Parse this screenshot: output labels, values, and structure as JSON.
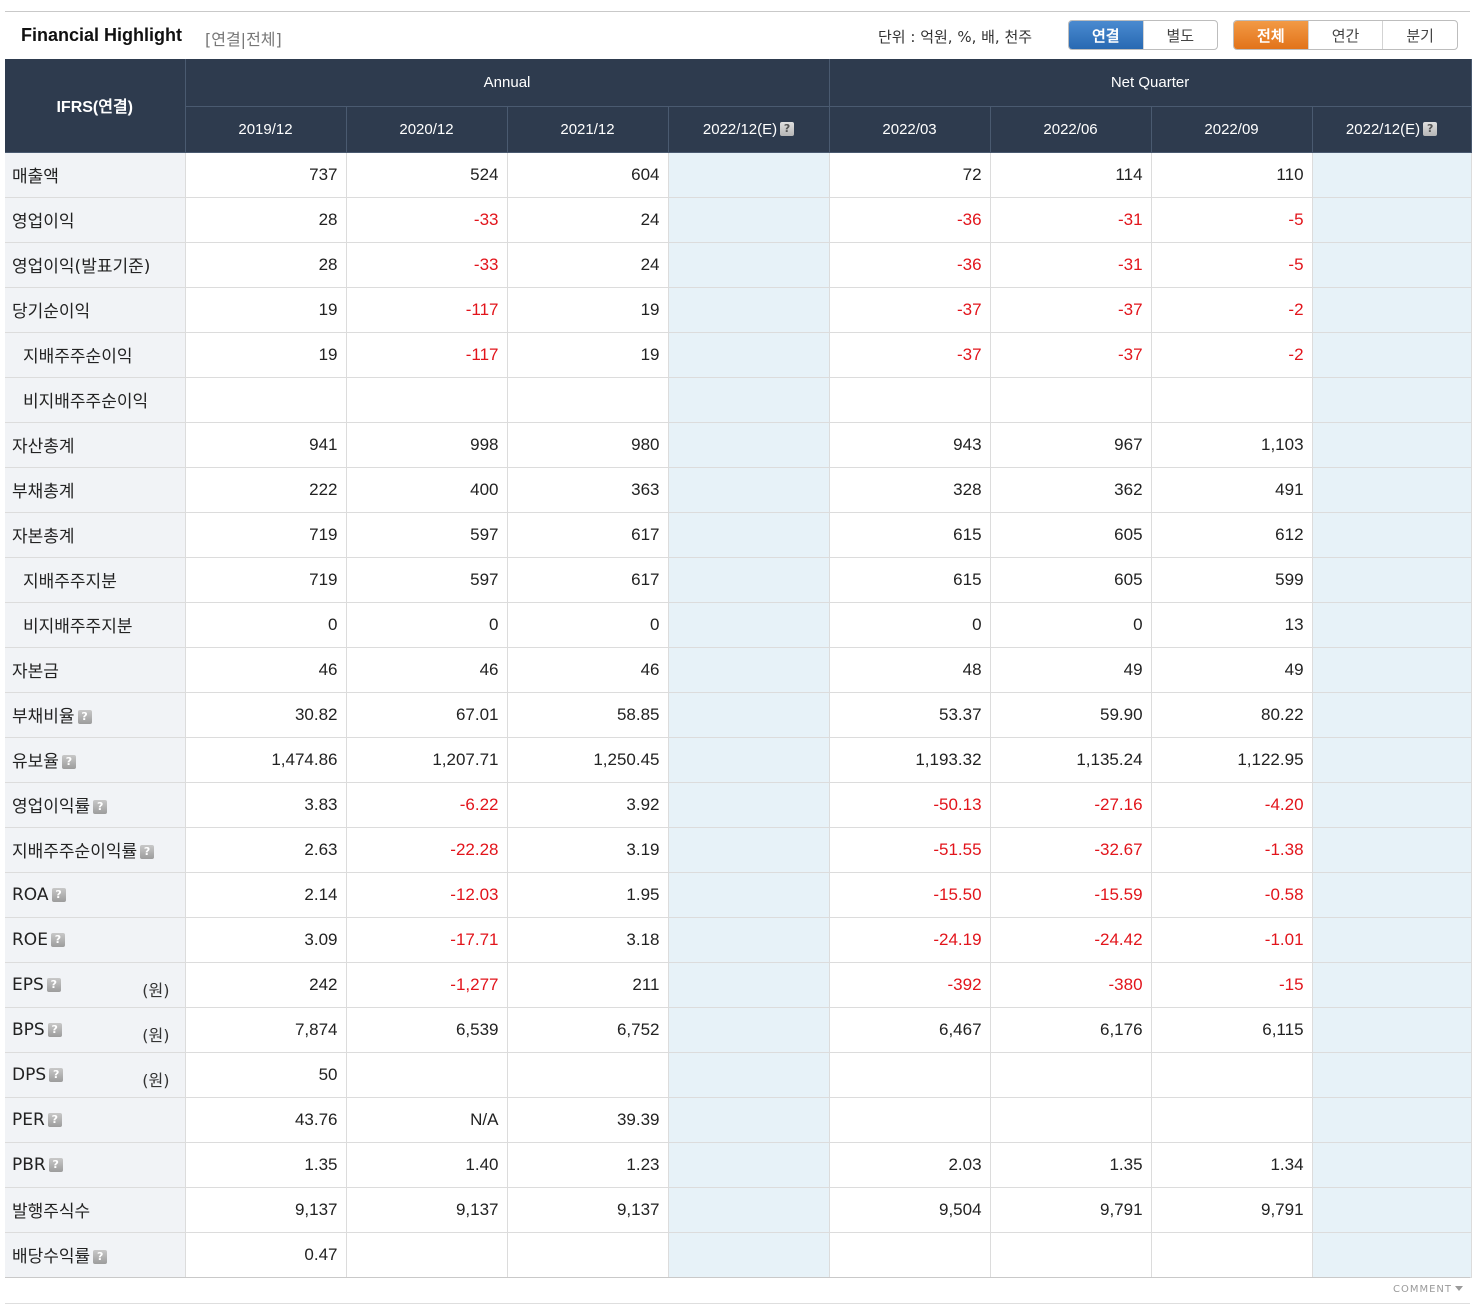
{
  "header": {
    "title": "Financial Highlight",
    "subtitle": "[연결|전체]",
    "unit": "단위 : 억원, %, 배, 천주",
    "group1": [
      {
        "label": "연결",
        "active": true
      },
      {
        "label": "별도",
        "active": false
      }
    ],
    "group2": [
      {
        "label": "전체",
        "active": true
      },
      {
        "label": "연간",
        "active": false
      },
      {
        "label": "분기",
        "active": false
      }
    ]
  },
  "table": {
    "corner": "IFRS(연결)",
    "annual_label": "Annual",
    "quarter_label": "Net Quarter",
    "columns": [
      "2019/12",
      "2020/12",
      "2021/12",
      "2022/12(E)",
      "2022/03",
      "2022/06",
      "2022/09",
      "2022/12(E)"
    ],
    "estimate_columns": [
      3,
      7
    ],
    "rows": [
      {
        "label": "매출액",
        "indent": false,
        "help": false,
        "unit": "",
        "values": [
          "737",
          "524",
          "604",
          "",
          "72",
          "114",
          "110",
          ""
        ]
      },
      {
        "label": "영업이익",
        "indent": false,
        "help": false,
        "unit": "",
        "values": [
          "28",
          "-33",
          "24",
          "",
          "-36",
          "-31",
          "-5",
          ""
        ]
      },
      {
        "label": "영업이익(발표기준)",
        "indent": false,
        "help": false,
        "unit": "",
        "values": [
          "28",
          "-33",
          "24",
          "",
          "-36",
          "-31",
          "-5",
          ""
        ]
      },
      {
        "label": "당기순이익",
        "indent": false,
        "help": false,
        "unit": "",
        "values": [
          "19",
          "-117",
          "19",
          "",
          "-37",
          "-37",
          "-2",
          ""
        ]
      },
      {
        "label": "지배주주순이익",
        "indent": true,
        "help": false,
        "unit": "",
        "values": [
          "19",
          "-117",
          "19",
          "",
          "-37",
          "-37",
          "-2",
          ""
        ]
      },
      {
        "label": "비지배주주순이익",
        "indent": true,
        "help": false,
        "unit": "",
        "values": [
          "",
          "",
          "",
          "",
          "",
          "",
          "",
          ""
        ]
      },
      {
        "label": "자산총계",
        "indent": false,
        "help": false,
        "unit": "",
        "values": [
          "941",
          "998",
          "980",
          "",
          "943",
          "967",
          "1,103",
          ""
        ]
      },
      {
        "label": "부채총계",
        "indent": false,
        "help": false,
        "unit": "",
        "values": [
          "222",
          "400",
          "363",
          "",
          "328",
          "362",
          "491",
          ""
        ]
      },
      {
        "label": "자본총계",
        "indent": false,
        "help": false,
        "unit": "",
        "values": [
          "719",
          "597",
          "617",
          "",
          "615",
          "605",
          "612",
          ""
        ]
      },
      {
        "label": "지배주주지분",
        "indent": true,
        "help": false,
        "unit": "",
        "values": [
          "719",
          "597",
          "617",
          "",
          "615",
          "605",
          "599",
          ""
        ]
      },
      {
        "label": "비지배주주지분",
        "indent": true,
        "help": false,
        "unit": "",
        "values": [
          "0",
          "0",
          "0",
          "",
          "0",
          "0",
          "13",
          ""
        ]
      },
      {
        "label": "자본금",
        "indent": false,
        "help": false,
        "unit": "",
        "values": [
          "46",
          "46",
          "46",
          "",
          "48",
          "49",
          "49",
          ""
        ]
      },
      {
        "label": "부채비율",
        "indent": false,
        "help": true,
        "unit": "",
        "values": [
          "30.82",
          "67.01",
          "58.85",
          "",
          "53.37",
          "59.90",
          "80.22",
          ""
        ]
      },
      {
        "label": "유보율",
        "indent": false,
        "help": true,
        "unit": "",
        "values": [
          "1,474.86",
          "1,207.71",
          "1,250.45",
          "",
          "1,193.32",
          "1,135.24",
          "1,122.95",
          ""
        ]
      },
      {
        "label": "영업이익률",
        "indent": false,
        "help": true,
        "unit": "",
        "values": [
          "3.83",
          "-6.22",
          "3.92",
          "",
          "-50.13",
          "-27.16",
          "-4.20",
          ""
        ]
      },
      {
        "label": "지배주주순이익률",
        "indent": false,
        "help": true,
        "unit": "",
        "values": [
          "2.63",
          "-22.28",
          "3.19",
          "",
          "-51.55",
          "-32.67",
          "-1.38",
          ""
        ]
      },
      {
        "label": "ROA",
        "indent": false,
        "help": true,
        "unit": "",
        "values": [
          "2.14",
          "-12.03",
          "1.95",
          "",
          "-15.50",
          "-15.59",
          "-0.58",
          ""
        ]
      },
      {
        "label": "ROE",
        "indent": false,
        "help": true,
        "unit": "",
        "values": [
          "3.09",
          "-17.71",
          "3.18",
          "",
          "-24.19",
          "-24.42",
          "-1.01",
          ""
        ]
      },
      {
        "label": "EPS",
        "indent": false,
        "help": true,
        "unit": "(원)",
        "values": [
          "242",
          "-1,277",
          "211",
          "",
          "-392",
          "-380",
          "-15",
          ""
        ]
      },
      {
        "label": "BPS",
        "indent": false,
        "help": true,
        "unit": "(원)",
        "values": [
          "7,874",
          "6,539",
          "6,752",
          "",
          "6,467",
          "6,176",
          "6,115",
          ""
        ]
      },
      {
        "label": "DPS",
        "indent": false,
        "help": true,
        "unit": "(원)",
        "values": [
          "50",
          "",
          "",
          "",
          "",
          "",
          "",
          ""
        ]
      },
      {
        "label": "PER",
        "indent": false,
        "help": true,
        "unit": "",
        "values": [
          "43.76",
          "N/A",
          "39.39",
          "",
          "",
          "",
          "",
          ""
        ]
      },
      {
        "label": "PBR",
        "indent": false,
        "help": true,
        "unit": "",
        "values": [
          "1.35",
          "1.40",
          "1.23",
          "",
          "2.03",
          "1.35",
          "1.34",
          ""
        ]
      },
      {
        "label": "발행주식수",
        "indent": false,
        "help": false,
        "unit": "",
        "values": [
          "9,137",
          "9,137",
          "9,137",
          "",
          "9,504",
          "9,791",
          "9,791",
          ""
        ]
      },
      {
        "label": "배당수익률",
        "indent": false,
        "help": true,
        "unit": "",
        "values": [
          "0.47",
          "",
          "",
          "",
          "",
          "",
          "",
          ""
        ]
      }
    ]
  },
  "footer": {
    "comment": "COMMENT"
  },
  "colors": {
    "header_bg": "#2e3b4e",
    "negative": "#e2141b",
    "estimate_bg": "#e7f2f8",
    "label_bg": "#f1f3f6",
    "blue_btn": "#2869b2",
    "orange_btn": "#e2731a"
  }
}
